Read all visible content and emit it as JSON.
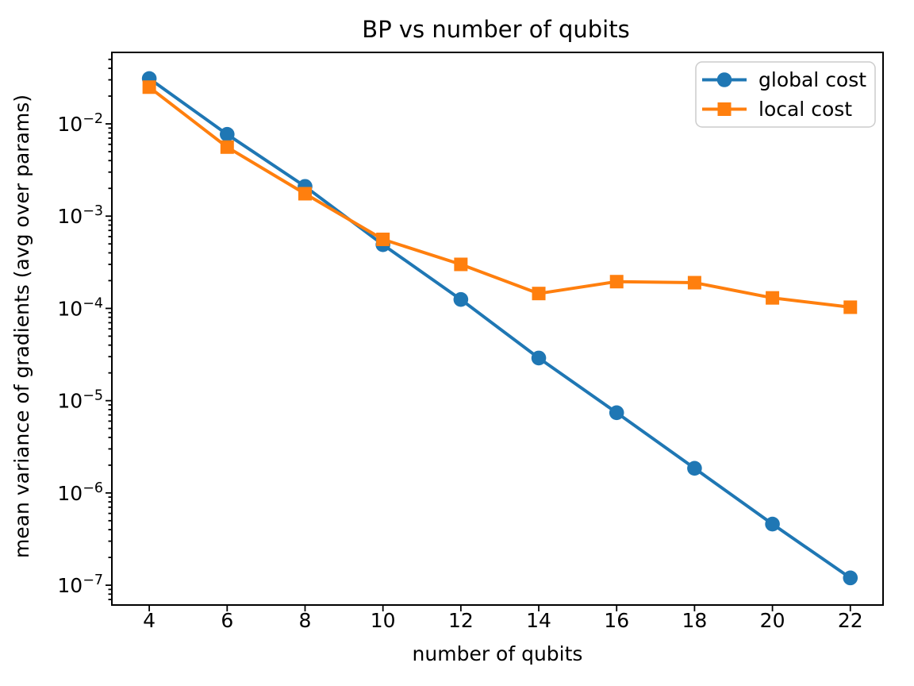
{
  "figure": {
    "background": "#ffffff",
    "text_color": "#000000",
    "spine_color": "#000000",
    "legend_border_color": "#cccccc",
    "legend_background": "#ffffff"
  },
  "chart_data": {
    "type": "line",
    "title": "BP vs number of qubits",
    "xlabel": "number of qubits",
    "ylabel": "mean variance of gradients (avg over params)",
    "x": [
      4,
      6,
      8,
      10,
      12,
      14,
      16,
      18,
      20,
      22
    ],
    "series": [
      {
        "name": "global cost",
        "color": "#1f77b4",
        "marker": "circle",
        "values": [
          0.031,
          0.0077,
          0.0021,
          0.00049,
          0.000125,
          2.9e-05,
          7.4e-06,
          1.85e-06,
          4.6e-07,
          1.2e-07
        ]
      },
      {
        "name": "local cost",
        "color": "#ff7f0e",
        "marker": "square",
        "values": [
          0.025,
          0.0056,
          0.00175,
          0.00056,
          0.0003,
          0.000145,
          0.000195,
          0.00019,
          0.00013,
          0.000103
        ]
      }
    ],
    "x_ticks": [
      4,
      6,
      8,
      10,
      12,
      14,
      16,
      18,
      20,
      22
    ],
    "y_scale": "log",
    "y_tick_exponents": [
      -2,
      -3,
      -4,
      -5,
      -6,
      -7
    ],
    "y_minor_ticks": true,
    "xlim": [
      3.04,
      22.84
    ],
    "ylim": [
      6.1e-08,
      0.0595
    ],
    "grid": false,
    "legend": {
      "position": "upper right",
      "entries": [
        "global cost",
        "local cost"
      ]
    }
  }
}
